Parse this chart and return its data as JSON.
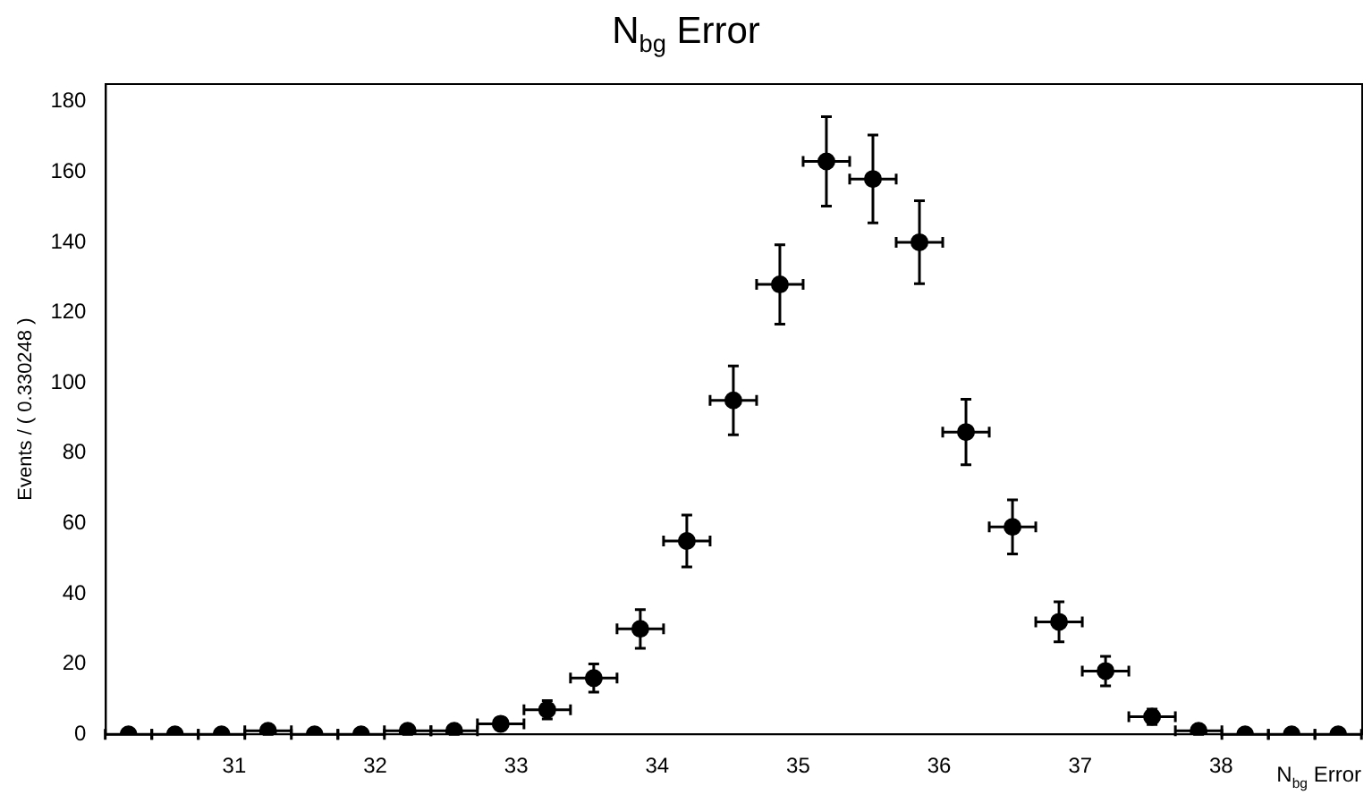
{
  "chart_data": {
    "type": "scatter",
    "title": "N$_{bg}$ Error",
    "xlabel": "N$_{bg}$ Error",
    "ylabel": "Events / ( 0.330248 )",
    "x": [
      30.25,
      30.58,
      30.91,
      31.24,
      31.57,
      31.9,
      32.23,
      32.56,
      32.89,
      33.22,
      33.55,
      33.88,
      34.21,
      34.54,
      34.87,
      35.2,
      35.53,
      35.86,
      36.19,
      36.52,
      36.85,
      37.18,
      37.51,
      37.84,
      38.17,
      38.5,
      38.83
    ],
    "series": [
      {
        "color": "#000000",
        "values": [
          0,
          0,
          0,
          1,
          0,
          0,
          1,
          1,
          3,
          7,
          16,
          30,
          55,
          95,
          128,
          163,
          158,
          140,
          86,
          59,
          32,
          18,
          5,
          1,
          0,
          0,
          0
        ],
        "errors": [
          null,
          null,
          null,
          1,
          null,
          null,
          1,
          1,
          1.7,
          2.6,
          4,
          5.5,
          7.4,
          9.8,
          11.3,
          12.7,
          12.5,
          11.8,
          9.3,
          7.7,
          5.7,
          4.2,
          2.2,
          1,
          null,
          null,
          null
        ],
        "xerrors": [
          0.165,
          0.165,
          0.165,
          0.165,
          0.165,
          0.165,
          0.165,
          0.165,
          0.165,
          0.165,
          0.165,
          0.165,
          0.165,
          0.165,
          0.165,
          0.165,
          0.165,
          0.165,
          0.165,
          0.165,
          0.165,
          0.165,
          0.165,
          0.165,
          0.165,
          0.165,
          0.165
        ]
      }
    ],
    "xlim": [
      30.09,
      39.0
    ],
    "xticks": [
      31,
      32,
      33,
      34,
      35,
      36,
      37,
      38
    ],
    "ylim": [
      0,
      185
    ],
    "yticks": [
      0,
      20,
      40,
      60,
      80,
      100,
      120,
      140,
      160,
      180
    ],
    "grid": false,
    "legend": false,
    "marker": "circle"
  }
}
